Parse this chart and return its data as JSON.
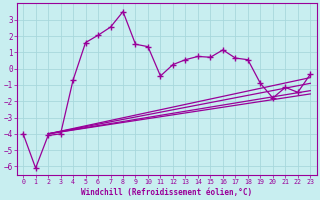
{
  "xlabel": "Windchill (Refroidissement éolien,°C)",
  "background_color": "#c8eef0",
  "grid_color": "#b0d8dc",
  "line_color": "#990099",
  "xlim": [
    -0.5,
    23.5
  ],
  "ylim": [
    -6.5,
    4.0
  ],
  "yticks": [
    -6,
    -5,
    -4,
    -3,
    -2,
    -1,
    0,
    1,
    2,
    3
  ],
  "xticks": [
    0,
    1,
    2,
    3,
    4,
    5,
    6,
    7,
    8,
    9,
    10,
    11,
    12,
    13,
    14,
    15,
    16,
    17,
    18,
    19,
    20,
    21,
    22,
    23
  ],
  "main_x": [
    0,
    1,
    2,
    3,
    4,
    5,
    6,
    7,
    8,
    9,
    10,
    11,
    12,
    13,
    14,
    15,
    16,
    17,
    18,
    19,
    20,
    21,
    22,
    23
  ],
  "main_y": [
    -4.0,
    -6.1,
    -4.1,
    -4.0,
    -0.7,
    1.6,
    2.05,
    2.55,
    3.5,
    1.5,
    1.35,
    -0.45,
    0.25,
    0.55,
    0.75,
    0.7,
    1.15,
    0.65,
    0.55,
    -0.9,
    -1.8,
    -1.15,
    -1.45,
    -0.35
  ],
  "ref_lines": [
    {
      "x": [
        2,
        23
      ],
      "y": [
        -4.0,
        -0.9
      ]
    },
    {
      "x": [
        2,
        23
      ],
      "y": [
        -4.0,
        -1.35
      ]
    },
    {
      "x": [
        2,
        23
      ],
      "y": [
        -4.0,
        -1.55
      ]
    },
    {
      "x": [
        2,
        23
      ],
      "y": [
        -4.0,
        -0.55
      ]
    }
  ]
}
